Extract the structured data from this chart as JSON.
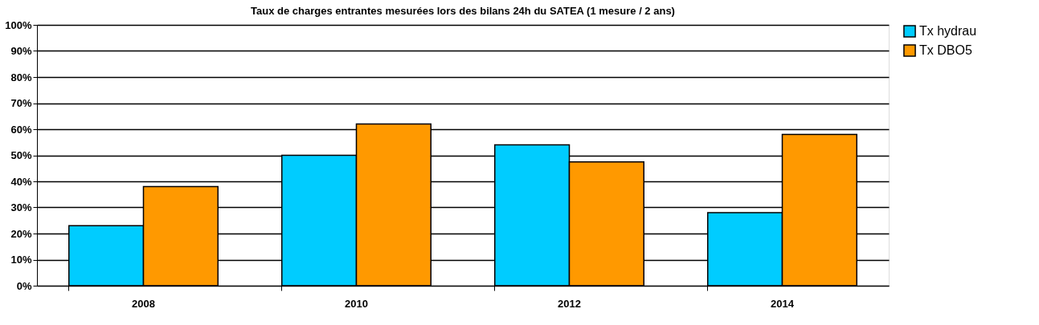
{
  "chart_data": {
    "type": "bar",
    "title": "Taux de charges entrantes mesurées lors des bilans 24h du SATEA (1 mesure / 2 ans)",
    "categories": [
      "2008",
      "2010",
      "2012",
      "2014"
    ],
    "series": [
      {
        "name": "Tx hydrau",
        "color": "#00ccff",
        "values": [
          23,
          50,
          54,
          28
        ]
      },
      {
        "name": "Tx DBO5",
        "color": "#ff9900",
        "values": [
          38,
          62,
          47.5,
          58
        ]
      }
    ],
    "ylim": [
      0,
      100
    ],
    "yticks": [
      {
        "value": 0,
        "label": "0%"
      },
      {
        "value": 10,
        "label": "10%"
      },
      {
        "value": 20,
        "label": "20%"
      },
      {
        "value": 30,
        "label": "30%"
      },
      {
        "value": 40,
        "label": "40%"
      },
      {
        "value": 50,
        "label": "50%"
      },
      {
        "value": 60,
        "label": "60%"
      },
      {
        "value": 70,
        "label": "70%"
      },
      {
        "value": 80,
        "label": "80%"
      },
      {
        "value": 90,
        "label": "90%"
      },
      {
        "value": 100,
        "label": "100%"
      }
    ],
    "grid": "y",
    "legend": "right"
  }
}
